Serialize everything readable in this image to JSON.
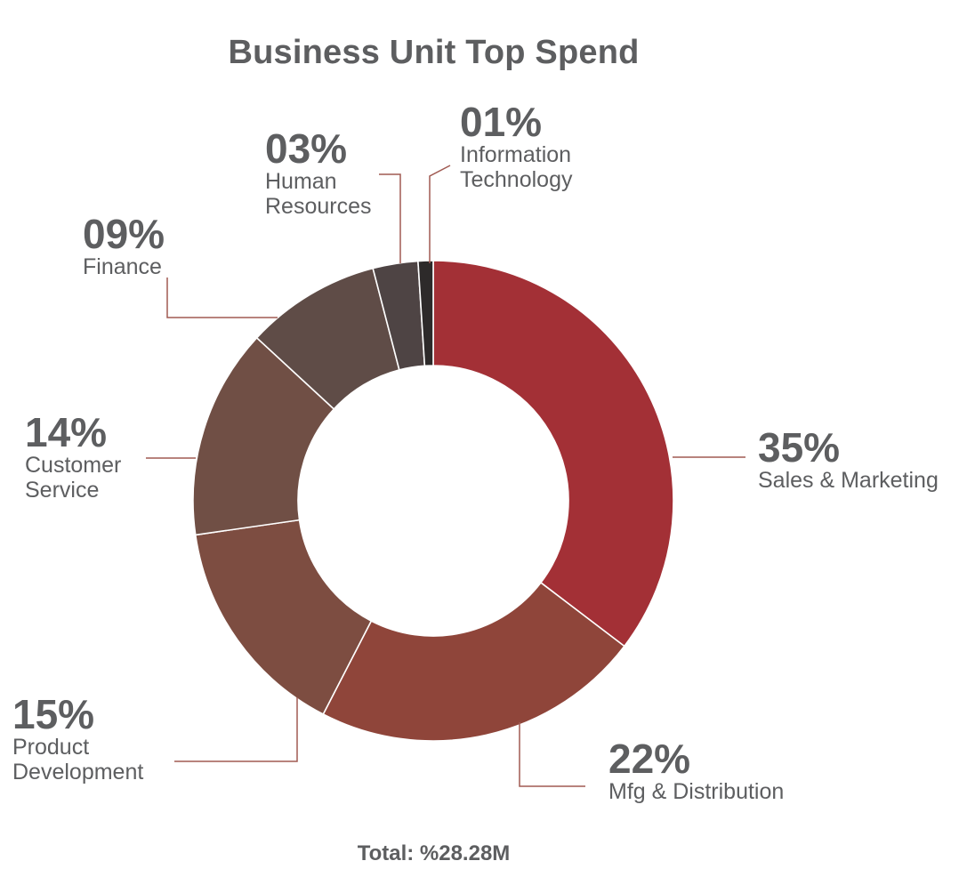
{
  "chart_data": {
    "type": "pie",
    "title": "Business Unit Top Spend",
    "total_label": "Total: %28.28M",
    "slices": [
      {
        "pct_label": "35%",
        "name": "Sales & Marketing",
        "value": 35,
        "color": "#a33036"
      },
      {
        "pct_label": "22%",
        "name": "Mfg & Distribution",
        "value": 22,
        "color": "#8f453a"
      },
      {
        "pct_label": "15%",
        "name": "Product\nDevelopment",
        "value": 15,
        "color": "#7d4d41"
      },
      {
        "pct_label": "14%",
        "name": "Customer\nService",
        "value": 14,
        "color": "#704f45"
      },
      {
        "pct_label": "09%",
        "name": "Finance",
        "value": 9,
        "color": "#5f4c47"
      },
      {
        "pct_label": "03%",
        "name": "Human\nResources",
        "value": 3,
        "color": "#4e4444"
      },
      {
        "pct_label": "01%",
        "name": "Information\nTechnology",
        "value": 1,
        "color": "#2d2a2a"
      }
    ]
  }
}
